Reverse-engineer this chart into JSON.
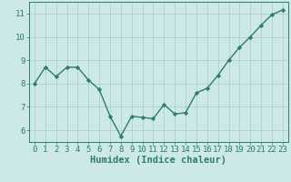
{
  "x": [
    0,
    1,
    2,
    3,
    4,
    5,
    6,
    7,
    8,
    9,
    10,
    11,
    12,
    13,
    14,
    15,
    16,
    17,
    18,
    19,
    20,
    21,
    22,
    23
  ],
  "y": [
    8.0,
    8.7,
    8.3,
    8.7,
    8.7,
    8.15,
    7.75,
    6.6,
    5.75,
    6.6,
    6.55,
    6.5,
    7.1,
    6.7,
    6.75,
    7.6,
    7.8,
    8.35,
    9.0,
    9.55,
    10.0,
    10.5,
    10.95,
    11.15
  ],
  "line_color": "#2e7d6e",
  "marker": "D",
  "marker_size": 2.2,
  "line_width": 1.0,
  "bg_color": "#cce8e8",
  "grid_color": "#b0d0d0",
  "xlabel": "Humidex (Indice chaleur)",
  "xlabel_fontsize": 7.5,
  "tick_fontsize": 6.5,
  "ylim": [
    5.5,
    11.5
  ],
  "yticks": [
    6,
    7,
    8,
    9,
    10,
    11
  ],
  "xticks": [
    0,
    1,
    2,
    3,
    4,
    5,
    6,
    7,
    8,
    9,
    10,
    11,
    12,
    13,
    14,
    15,
    16,
    17,
    18,
    19,
    20,
    21,
    22,
    23
  ],
  "spine_color": "#2e7d6e"
}
